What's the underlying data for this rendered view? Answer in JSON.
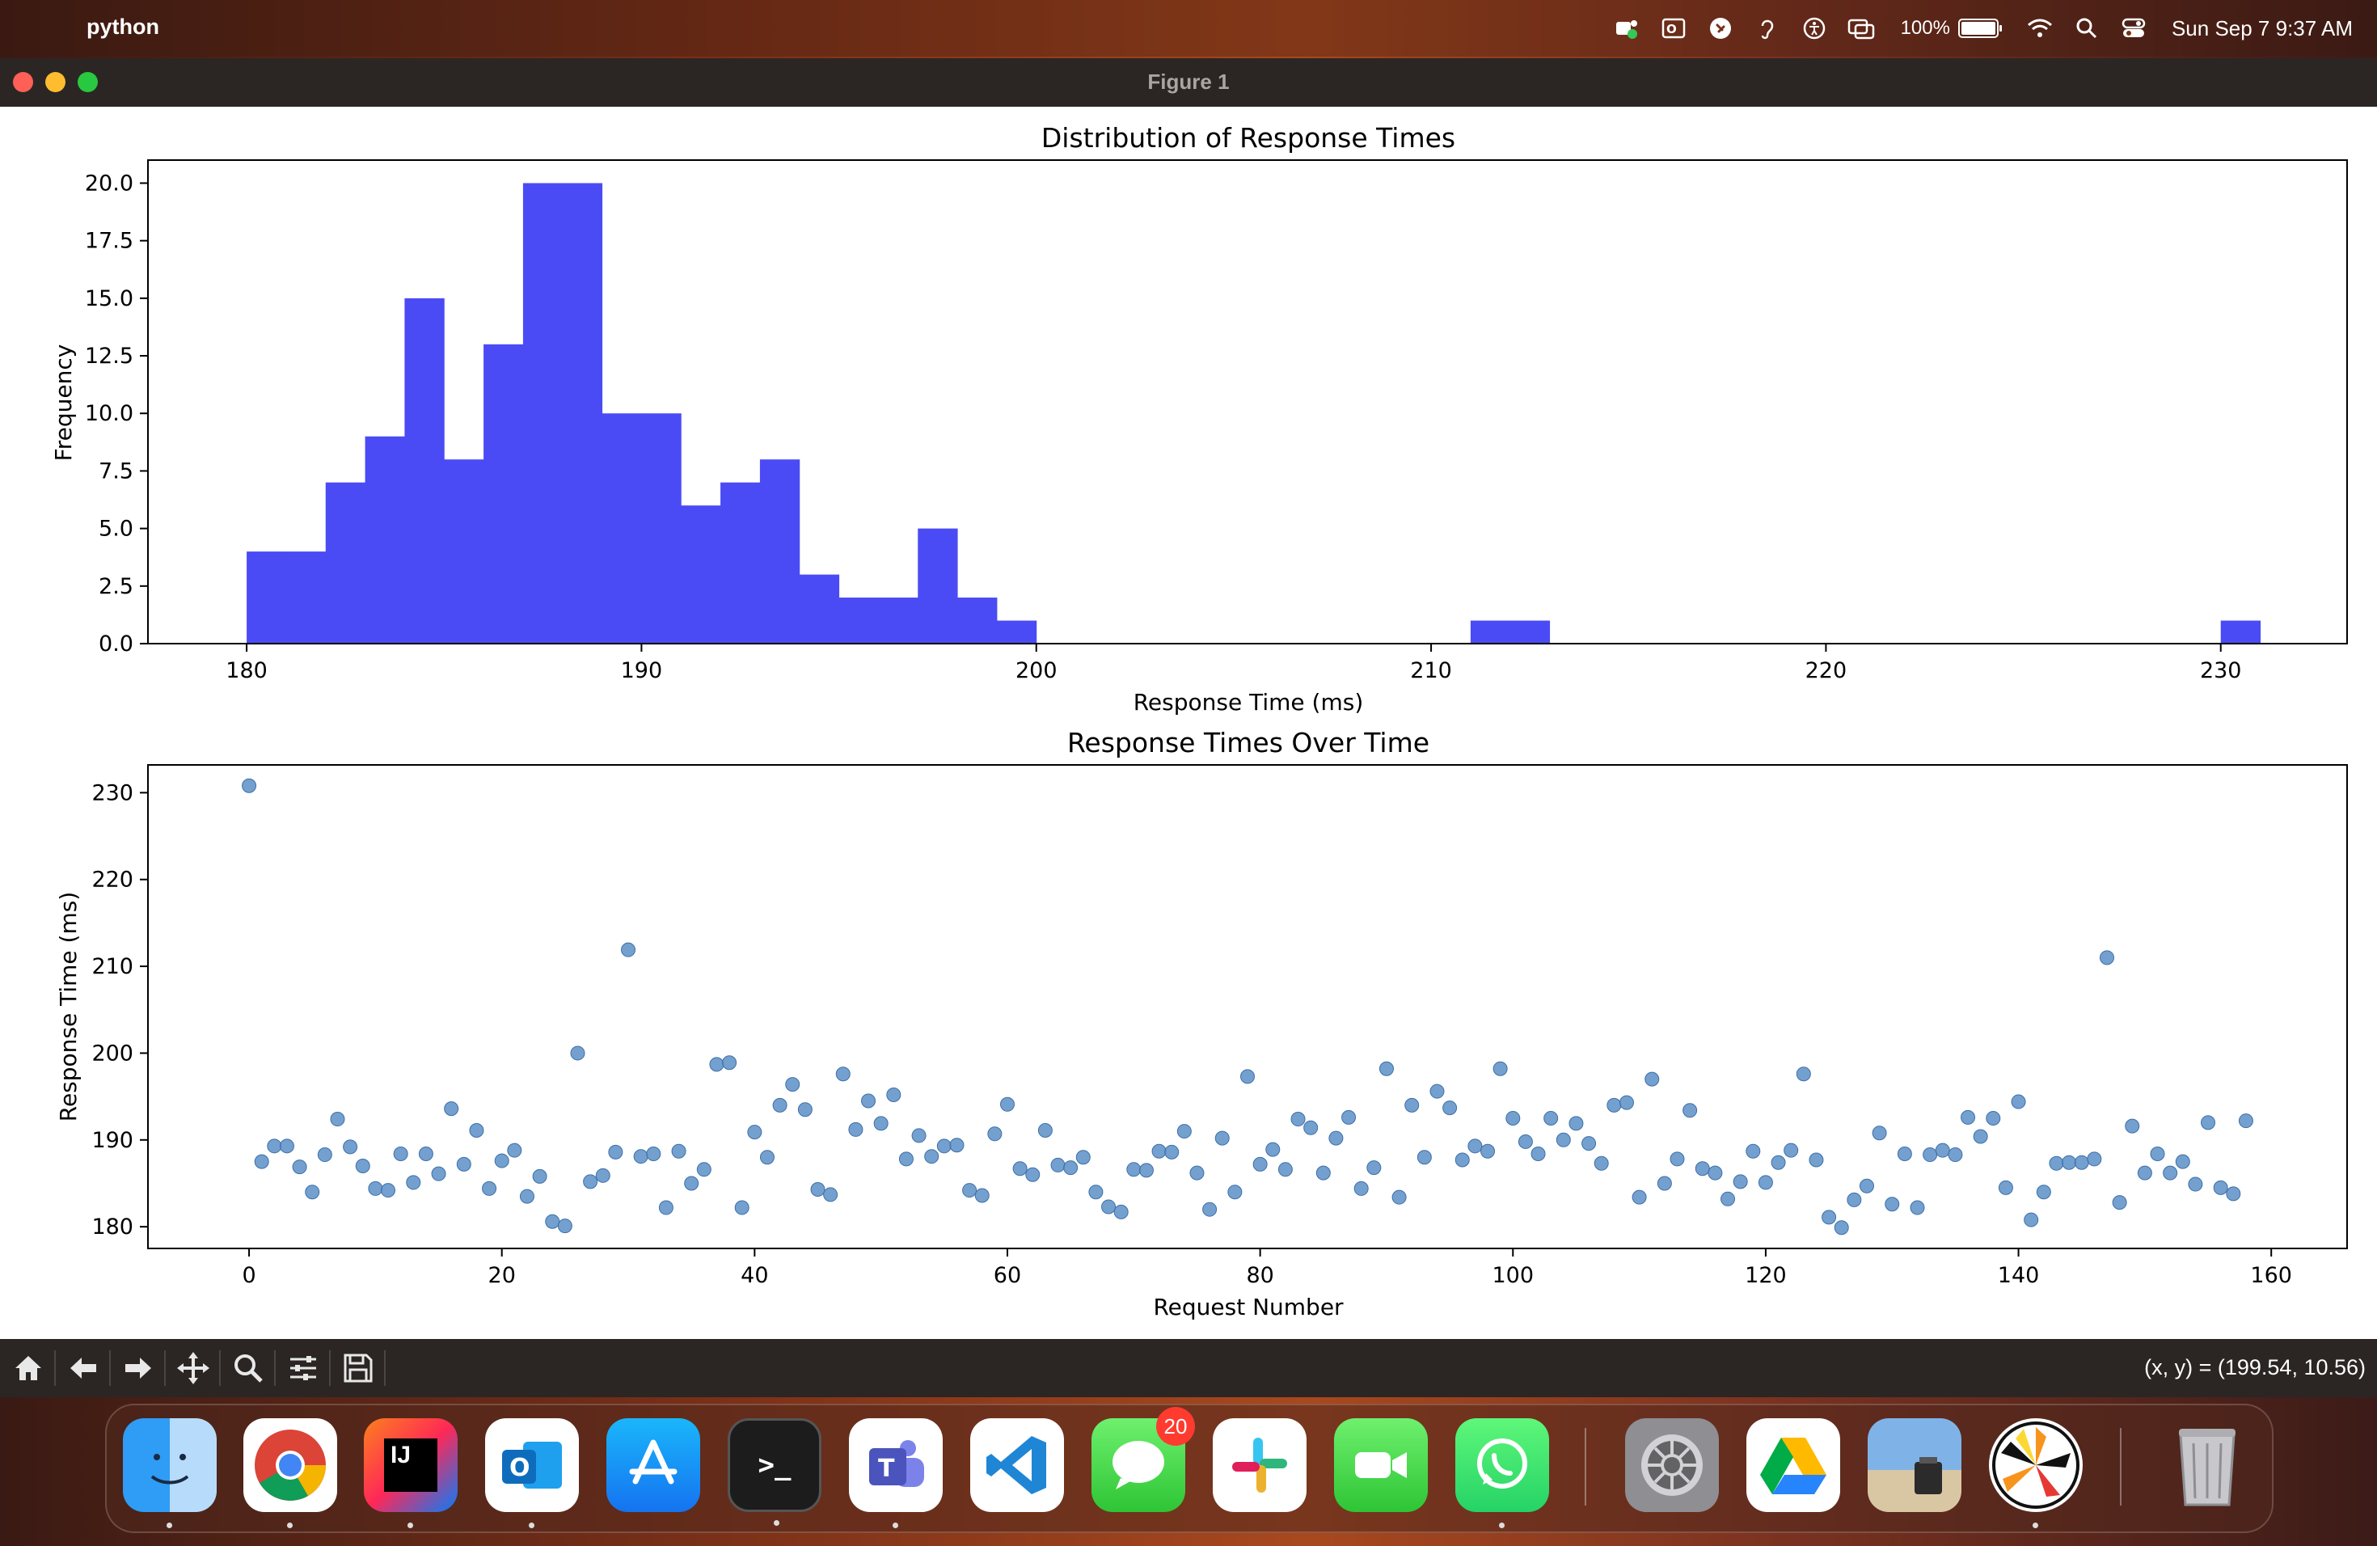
{
  "menubar": {
    "app_name": "python",
    "battery": "100%",
    "datetime": "Sun Sep 7  9:37 AM",
    "icons": [
      "teams-status-icon",
      "outlook-icon",
      "shazam-icon",
      "hearing-icon",
      "accessibility-icon",
      "screen-mirroring-icon",
      "battery-icon",
      "wifi-icon",
      "spotlight-search-icon",
      "control-center-icon"
    ]
  },
  "window": {
    "title": "Figure 1"
  },
  "toolbar": {
    "buttons": [
      "home-icon",
      "back-icon",
      "forward-icon",
      "pan-icon",
      "zoom-icon",
      "configure-subplots-icon",
      "save-icon"
    ],
    "coords": "(x, y) = (199.54, 10.56)"
  },
  "dock": {
    "apps": [
      "Finder",
      "Chrome",
      "IntelliJ IDEA",
      "Outlook",
      "App Store",
      "Terminal",
      "Teams",
      "VS Code",
      "Messages",
      "Slack",
      "FaceTime",
      "WhatsApp",
      "System Settings",
      "Google Drive",
      "Preview",
      "Pinwheel",
      "Trash"
    ],
    "messages_badge": "20"
  },
  "chart_data": [
    {
      "type": "bar",
      "title": "Distribution of Response Times",
      "xlabel": "Response Time (ms)",
      "ylabel": "Frequency",
      "color": "#4b4bf5",
      "xlim": [
        177.5,
        233.2
      ],
      "ylim": [
        0,
        21
      ],
      "xticks": [
        180,
        190,
        200,
        210,
        220,
        230
      ],
      "yticks": [
        "0.0",
        "2.5",
        "5.0",
        "7.5",
        "10.0",
        "12.5",
        "15.0",
        "17.5",
        "20.0"
      ],
      "bin_start": 180.0,
      "bin_width": 1.0,
      "counts": [
        4,
        4,
        7,
        9,
        15,
        8,
        13,
        20,
        20,
        10,
        10,
        6,
        7,
        8,
        3,
        2,
        2,
        5,
        2,
        1,
        0,
        0,
        0,
        0,
        0,
        0,
        0,
        0,
        0,
        0,
        0,
        1,
        1,
        0,
        0,
        0,
        0,
        0,
        0,
        0,
        0,
        0,
        0,
        0,
        0,
        0,
        0,
        0,
        0,
        0,
        1
      ]
    },
    {
      "type": "scatter",
      "title": "Response Times Over Time",
      "xlabel": "Request Number",
      "ylabel": "Response Time (ms)",
      "color": "#5b8fc7",
      "xlim": [
        -8,
        166
      ],
      "ylim": [
        177.5,
        233.2
      ],
      "xticks": [
        0,
        20,
        40,
        60,
        80,
        100,
        120,
        140,
        160
      ],
      "yticks": [
        180,
        190,
        200,
        210,
        220,
        230
      ],
      "y": [
        230.8,
        187.5,
        189.3,
        189.3,
        186.9,
        184.0,
        188.3,
        192.4,
        189.2,
        187.0,
        184.4,
        184.2,
        188.4,
        185.1,
        188.4,
        186.1,
        193.6,
        187.2,
        191.1,
        184.4,
        187.6,
        188.8,
        183.5,
        185.8,
        180.6,
        180.1,
        200.0,
        185.2,
        185.9,
        188.6,
        211.9,
        188.1,
        188.4,
        182.2,
        188.7,
        185.0,
        186.6,
        198.7,
        198.9,
        182.2,
        190.9,
        188.0,
        194.0,
        196.4,
        193.5,
        184.3,
        183.7,
        197.6,
        191.2,
        194.5,
        191.9,
        195.2,
        187.8,
        190.5,
        188.1,
        189.3,
        189.4,
        184.2,
        183.6,
        190.7,
        194.1,
        186.7,
        186.0,
        191.1,
        187.1,
        186.8,
        188.0,
        184.0,
        182.3,
        181.7,
        186.6,
        186.5,
        188.7,
        188.6,
        191.0,
        186.2,
        182.0,
        190.2,
        184.0,
        197.3,
        187.2,
        188.9,
        186.6,
        192.4,
        191.4,
        186.2,
        190.2,
        192.6,
        184.4,
        186.8,
        198.2,
        183.4,
        194.0,
        188.0,
        195.6,
        193.7,
        187.7,
        189.3,
        188.7,
        198.2,
        192.5,
        189.8,
        188.4,
        192.5,
        190.0,
        191.9,
        189.6,
        187.3,
        194.0,
        194.3,
        183.4,
        197.0,
        185.0,
        187.8,
        193.4,
        186.7,
        186.2,
        183.2,
        185.2,
        188.7,
        185.1,
        187.4,
        188.8,
        197.6,
        187.7,
        181.1,
        179.9,
        183.1,
        184.7,
        190.8,
        182.6,
        188.4,
        182.2,
        188.3,
        188.8,
        188.3,
        192.6,
        190.4,
        192.5,
        184.5,
        194.4,
        180.8,
        184.0,
        187.3,
        187.4,
        187.4,
        187.8,
        211.0,
        182.8,
        191.6,
        186.2,
        188.4,
        186.2,
        187.5,
        184.9,
        192.0,
        184.5,
        183.8,
        192.2
      ]
    }
  ]
}
